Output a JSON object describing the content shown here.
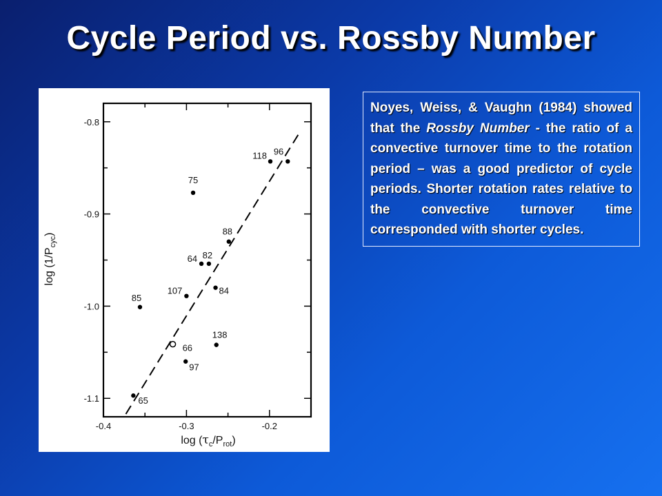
{
  "slide": {
    "title": "Cycle Period vs. Rossby Number",
    "colors": {
      "background_dark": "#0a1f6e",
      "background_light": "#1670ef",
      "text": "#ffffff"
    }
  },
  "text_box": {
    "part1": "Noyes, Weiss, & Vaughn (1984) showed that the ",
    "emphasis": "Rossby Number",
    "part2": " - the ratio of a convective turnover time to the rotation period – was a good predictor of cycle periods. Shorter rotation rates relative to the convective turnover time corresponded with shorter cycles."
  },
  "chart_data": {
    "type": "scatter",
    "xlabel_main": "log (",
    "xlabel_tau": "τ",
    "xlabel_tau_sub": "c",
    "xlabel_mid": "/P",
    "xlabel_p_sub": "rot",
    "xlabel_end": ")",
    "ylabel_main": "log (1/P",
    "ylabel_sub": "cyc",
    "ylabel_end": ")",
    "xlim": [
      -0.4,
      -0.15
    ],
    "ylim": [
      -1.12,
      -0.78
    ],
    "x_ticks": [
      {
        "value": -0.4,
        "label": "-0.4"
      },
      {
        "value": -0.3,
        "label": "-0.3"
      },
      {
        "value": -0.2,
        "label": "-0.2"
      }
    ],
    "y_ticks": [
      {
        "value": -0.8,
        "label": "-0.8"
      },
      {
        "value": -0.9,
        "label": "-0.9"
      },
      {
        "value": -1.0,
        "label": "-1.0"
      },
      {
        "value": -1.1,
        "label": "-1.1"
      }
    ],
    "points": [
      {
        "label": "96",
        "x": -0.178,
        "y": -0.843,
        "marker": "filled"
      },
      {
        "label": "118",
        "x": -0.199,
        "y": -0.843,
        "marker": "filled"
      },
      {
        "label": "75",
        "x": -0.292,
        "y": -0.877,
        "marker": "filled"
      },
      {
        "label": "88",
        "x": -0.249,
        "y": -0.93,
        "marker": "filled"
      },
      {
        "label": "64",
        "x": -0.282,
        "y": -0.954,
        "marker": "filled"
      },
      {
        "label": "82",
        "x": -0.273,
        "y": -0.954,
        "marker": "filled"
      },
      {
        "label": "107",
        "x": -0.3,
        "y": -0.989,
        "marker": "filled"
      },
      {
        "label": "84",
        "x": -0.265,
        "y": -0.98,
        "marker": "filled"
      },
      {
        "label": "85",
        "x": -0.356,
        "y": -1.001,
        "marker": "filled"
      },
      {
        "label": "138",
        "x": -0.264,
        "y": -1.042,
        "marker": "filled"
      },
      {
        "label": "66",
        "x": -0.309,
        "y": -1.042,
        "marker": "open"
      },
      {
        "label": "97",
        "x": -0.301,
        "y": -1.06,
        "marker": "filled"
      },
      {
        "label": "65",
        "x": -0.364,
        "y": -1.097,
        "marker": "filled"
      }
    ],
    "fit_line": {
      "style": "dashed",
      "x": [
        -0.373,
        -0.164
      ],
      "y": [
        -1.117,
        -0.812
      ]
    }
  }
}
